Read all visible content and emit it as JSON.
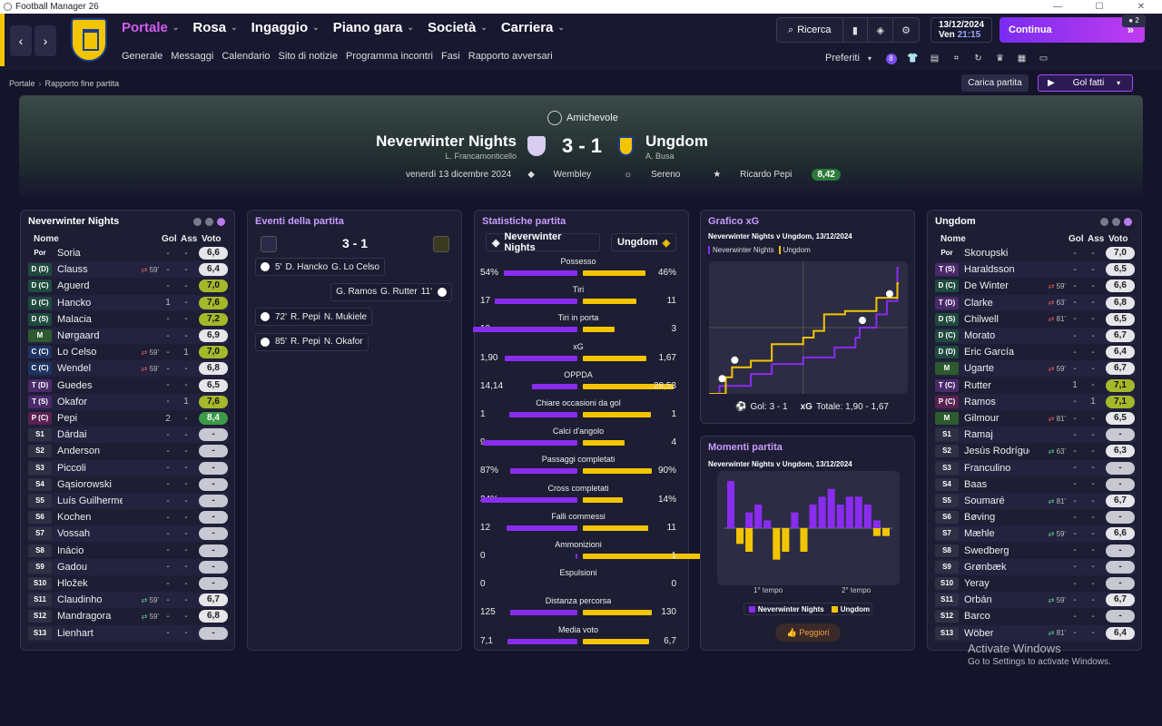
{
  "window": {
    "title": "Football Manager 26"
  },
  "nav": {
    "main": [
      {
        "label": "Portale",
        "active": true
      },
      {
        "label": "Rosa"
      },
      {
        "label": "Ingaggio"
      },
      {
        "label": "Piano gara"
      },
      {
        "label": "Società"
      },
      {
        "label": "Carriera"
      }
    ],
    "sub": [
      "Generale",
      "Messaggi",
      "Calendario",
      "Sito di notizie",
      "Programma incontri",
      "Fasi",
      "Rapporto avversari"
    ]
  },
  "top": {
    "search_label": "Ricerca",
    "date": "13/12/2024",
    "day": "Ven",
    "time": "21:15",
    "continue_label": "Continua",
    "user_count": "2",
    "preferiti_label": "Preferiti",
    "notif_count": "8"
  },
  "breadcrumb": {
    "root": "Portale",
    "current": "Rapporto fine partita"
  },
  "actions": {
    "load_label": "Carica partita",
    "goals_label": "Gol fatti"
  },
  "match": {
    "competition": "Amichevole",
    "home": {
      "name": "Neverwinter Nights",
      "manager": "L. Francamonticello"
    },
    "away": {
      "name": "Ungdom",
      "manager": "A. Busa"
    },
    "score": "3 - 1",
    "date": "venerdì 13 dicembre 2024",
    "stadium": "Wembley",
    "weather": "Sereno",
    "potm": "Ricardo Pepi",
    "potm_rating": "8,42"
  },
  "home_panel": {
    "title": "Neverwinter Nights",
    "cols": {
      "name": "Nome",
      "gol": "Gol",
      "ass": "Ass",
      "voto": "Voto"
    },
    "players": [
      {
        "pos": "Por",
        "name": "Soria",
        "sub": "",
        "gol": "-",
        "ass": "-",
        "voto": "6,6",
        "tone": "n"
      },
      {
        "pos": "D (D)",
        "name": "Clauss",
        "sub": "59'",
        "subdir": "out",
        "gol": "-",
        "ass": "-",
        "voto": "6,4",
        "tone": "n"
      },
      {
        "pos": "D (C)",
        "name": "Aguerd",
        "sub": "",
        "gol": "-",
        "ass": "-",
        "voto": "7,0",
        "tone": "y"
      },
      {
        "pos": "D (C)",
        "name": "Hancko",
        "sub": "",
        "gol": "1",
        "ass": "-",
        "voto": "7,6",
        "tone": "y"
      },
      {
        "pos": "D (S)",
        "name": "Malacia",
        "sub": "",
        "gol": "-",
        "ass": "-",
        "voto": "7,2",
        "tone": "y"
      },
      {
        "pos": "M",
        "name": "Nørgaard",
        "sub": "",
        "gol": "-",
        "ass": "-",
        "voto": "6,9",
        "tone": "n"
      },
      {
        "pos": "C (C)",
        "name": "Lo Celso",
        "sub": "59'",
        "subdir": "out",
        "gol": "-",
        "ass": "1",
        "voto": "7,0",
        "tone": "y"
      },
      {
        "pos": "C (C)",
        "name": "Wendel",
        "sub": "59'",
        "subdir": "out",
        "gol": "-",
        "ass": "-",
        "voto": "6,8",
        "tone": "n"
      },
      {
        "pos": "T (D)",
        "name": "Guedes",
        "sub": "",
        "gol": "-",
        "ass": "-",
        "voto": "6,5",
        "tone": "n"
      },
      {
        "pos": "T (S)",
        "name": "Okafor",
        "sub": "",
        "gol": "-",
        "ass": "1",
        "voto": "7,6",
        "tone": "y"
      },
      {
        "pos": "P (C)",
        "name": "Pepi",
        "sub": "",
        "gol": "2",
        "ass": "-",
        "voto": "8,4",
        "tone": "g"
      },
      {
        "pos": "S1",
        "name": "Dárdai",
        "sub": "",
        "gol": "-",
        "ass": "-",
        "voto": "-",
        "tone": "e"
      },
      {
        "pos": "S2",
        "name": "Anderson",
        "sub": "",
        "gol": "-",
        "ass": "-",
        "voto": "-",
        "tone": "e"
      },
      {
        "pos": "S3",
        "name": "Piccoli",
        "sub": "",
        "gol": "-",
        "ass": "-",
        "voto": "-",
        "tone": "e"
      },
      {
        "pos": "S4",
        "name": "Gąsiorowski",
        "sub": "",
        "gol": "-",
        "ass": "-",
        "voto": "-",
        "tone": "e"
      },
      {
        "pos": "S5",
        "name": "Luís Guilherme",
        "sub": "",
        "gol": "-",
        "ass": "-",
        "voto": "-",
        "tone": "e"
      },
      {
        "pos": "S6",
        "name": "Kochen",
        "sub": "",
        "gol": "-",
        "ass": "-",
        "voto": "-",
        "tone": "e"
      },
      {
        "pos": "S7",
        "name": "Vossah",
        "sub": "",
        "gol": "-",
        "ass": "-",
        "voto": "-",
        "tone": "e"
      },
      {
        "pos": "S8",
        "name": "Inácio",
        "sub": "",
        "gol": "-",
        "ass": "-",
        "voto": "-",
        "tone": "e"
      },
      {
        "pos": "S9",
        "name": "Gadou",
        "sub": "",
        "gol": "-",
        "ass": "-",
        "voto": "-",
        "tone": "e"
      },
      {
        "pos": "S10",
        "name": "Hložek",
        "sub": "",
        "gol": "-",
        "ass": "-",
        "voto": "-",
        "tone": "e"
      },
      {
        "pos": "S11",
        "name": "Claudinho",
        "sub": "59'",
        "subdir": "in",
        "gol": "-",
        "ass": "-",
        "voto": "6,7",
        "tone": "n"
      },
      {
        "pos": "S12",
        "name": "Mandragora",
        "sub": "59'",
        "subdir": "in",
        "gol": "-",
        "ass": "-",
        "voto": "6,8",
        "tone": "n"
      },
      {
        "pos": "S13",
        "name": "Lienhart",
        "sub": "",
        "gol": "-",
        "ass": "-",
        "voto": "-",
        "tone": "e"
      }
    ]
  },
  "events": {
    "title": "Eventi della partita",
    "score": "3 - 1",
    "items": [
      {
        "side": "home",
        "minute": "5'",
        "scorer": "D. Hancko",
        "assist": "G. Lo Celso"
      },
      {
        "side": "away",
        "minute": "11'",
        "scorer": "G. Rutter",
        "assist": "G. Ramos"
      },
      {
        "side": "home",
        "minute": "72'",
        "scorer": "R. Pepi",
        "assist": "N. Mukiele"
      },
      {
        "side": "home",
        "minute": "85'",
        "scorer": "R. Pepi",
        "assist": "N. Okafor"
      }
    ]
  },
  "stats": {
    "title": "Statistiche partita",
    "home": "Neverwinter Nights",
    "away": "Ungdom",
    "items": [
      {
        "label": "Possesso",
        "home": "54%",
        "away": "46%",
        "hv": 54,
        "av": 46
      },
      {
        "label": "Tiri",
        "home": "17",
        "away": "11",
        "hv": 17,
        "av": 11
      },
      {
        "label": "Tiri in porta",
        "home": "10",
        "away": "3",
        "hv": 10,
        "av": 3
      },
      {
        "label": "xG",
        "home": "1,90",
        "away": "1,67",
        "hv": 1.9,
        "av": 1.67
      },
      {
        "label": "OPPDA",
        "home": "14,14",
        "away": "28,53",
        "hv": 14.14,
        "av": 28.53
      },
      {
        "label": "Chiare occasioni da gol",
        "home": "1",
        "away": "1",
        "hv": 1,
        "av": 1
      },
      {
        "label": "Calci d'angolo",
        "home": "9",
        "away": "4",
        "hv": 9,
        "av": 4
      },
      {
        "label": "Passaggi completati",
        "home": "87%",
        "away": "90%",
        "hv": 87,
        "av": 90
      },
      {
        "label": "Cross completati",
        "home": "34%",
        "away": "14%",
        "hv": 34,
        "av": 14
      },
      {
        "label": "Falli commessi",
        "home": "12",
        "away": "11",
        "hv": 12,
        "av": 11
      },
      {
        "label": "Ammonizioni",
        "home": "0",
        "away": "1",
        "hv": 0,
        "av": 1
      },
      {
        "label": "Espulsioni",
        "home": "0",
        "away": "0",
        "hv": 0,
        "av": 0
      },
      {
        "label": "Distanza percorsa",
        "home": "125",
        "away": "130",
        "hv": 125,
        "av": 130
      },
      {
        "label": "Media voto",
        "home": "7,1",
        "away": "6,7",
        "hv": 7.1,
        "av": 6.7
      }
    ]
  },
  "xg": {
    "title": "Grafico xG",
    "subtitle": "Neverwinter Nights v Ungdom, 13/12/2024",
    "legend_home": "Neverwinter Nights",
    "legend_away": "Ungdom",
    "goals_label": "Gol: 3 - 1",
    "xg_label": "xG",
    "xg_total": "Totale: 1,90 - 1,67"
  },
  "moments": {
    "title": "Momenti partita",
    "subtitle": "Neverwinter Nights v Ungdom, 13/12/2024",
    "first_half": "1° tempo",
    "second_half": "2° tempo",
    "legend_home": "Neverwinter Nights",
    "legend_away": "Ungdom",
    "worst_label": "Peggiori"
  },
  "away_panel": {
    "title": "Ungdom",
    "cols": {
      "name": "Nome",
      "gol": "Gol",
      "ass": "Ass",
      "voto": "Voto"
    },
    "players": [
      {
        "pos": "Por",
        "name": "Skorupski",
        "sub": "",
        "gol": "-",
        "ass": "-",
        "voto": "7,0",
        "tone": "n"
      },
      {
        "pos": "T (S)",
        "name": "Haraldsson",
        "sub": "",
        "gol": "-",
        "ass": "-",
        "voto": "6,5",
        "tone": "n"
      },
      {
        "pos": "D (C)",
        "name": "De Winter",
        "sub": "59'",
        "subdir": "out",
        "gol": "-",
        "ass": "-",
        "voto": "6,6",
        "tone": "n"
      },
      {
        "pos": "T (D)",
        "name": "Clarke",
        "sub": "63'",
        "subdir": "out",
        "gol": "-",
        "ass": "-",
        "voto": "6,8",
        "tone": "n"
      },
      {
        "pos": "D (S)",
        "name": "Chilwell",
        "sub": "81'",
        "subdir": "out",
        "gol": "-",
        "ass": "-",
        "voto": "6,5",
        "tone": "n"
      },
      {
        "pos": "D (C)",
        "name": "Morato",
        "sub": "",
        "gol": "-",
        "ass": "-",
        "voto": "6,7",
        "tone": "n"
      },
      {
        "pos": "D (D)",
        "name": "Eric García",
        "sub": "",
        "gol": "-",
        "ass": "-",
        "voto": "6,4",
        "tone": "n"
      },
      {
        "pos": "M",
        "name": "Ugarte",
        "sub": "59'",
        "subdir": "out",
        "gol": "-",
        "ass": "-",
        "voto": "6,7",
        "tone": "n"
      },
      {
        "pos": "T (C)",
        "name": "Rutter",
        "sub": "",
        "gol": "1",
        "ass": "-",
        "voto": "7,1",
        "tone": "y"
      },
      {
        "pos": "P (C)",
        "name": "Ramos",
        "sub": "",
        "gol": "-",
        "ass": "1",
        "voto": "7,1",
        "tone": "y"
      },
      {
        "pos": "M",
        "name": "Gilmour",
        "sub": "81'",
        "subdir": "out",
        "gol": "-",
        "ass": "-",
        "voto": "6,5",
        "tone": "n"
      },
      {
        "pos": "S1",
        "name": "Ramaj",
        "sub": "",
        "gol": "-",
        "ass": "-",
        "voto": "-",
        "tone": "e"
      },
      {
        "pos": "S2",
        "name": "Jesús Rodríguez",
        "sub": "63'",
        "subdir": "in",
        "gol": "-",
        "ass": "-",
        "voto": "6,3",
        "tone": "n"
      },
      {
        "pos": "S3",
        "name": "Franculino",
        "sub": "",
        "gol": "-",
        "ass": "-",
        "voto": "-",
        "tone": "e"
      },
      {
        "pos": "S4",
        "name": "Baas",
        "sub": "",
        "gol": "-",
        "ass": "-",
        "voto": "-",
        "tone": "e"
      },
      {
        "pos": "S5",
        "name": "Soumaré",
        "sub": "81'",
        "subdir": "in",
        "gol": "-",
        "ass": "-",
        "voto": "6,7",
        "tone": "n"
      },
      {
        "pos": "S6",
        "name": "Bøving",
        "sub": "",
        "gol": "-",
        "ass": "-",
        "voto": "-",
        "tone": "e"
      },
      {
        "pos": "S7",
        "name": "Mæhle",
        "sub": "59'",
        "subdir": "in",
        "gol": "-",
        "ass": "-",
        "voto": "6,6",
        "tone": "n"
      },
      {
        "pos": "S8",
        "name": "Swedberg",
        "sub": "",
        "gol": "-",
        "ass": "-",
        "voto": "-",
        "tone": "e"
      },
      {
        "pos": "S9",
        "name": "Grønbæk",
        "sub": "",
        "gol": "-",
        "ass": "-",
        "voto": "-",
        "tone": "e"
      },
      {
        "pos": "S10",
        "name": "Yeray",
        "sub": "",
        "gol": "-",
        "ass": "-",
        "voto": "-",
        "tone": "e"
      },
      {
        "pos": "S11",
        "name": "Orbán",
        "sub": "59'",
        "subdir": "in",
        "gol": "-",
        "ass": "-",
        "voto": "6,7",
        "tone": "n"
      },
      {
        "pos": "S12",
        "name": "Barco",
        "sub": "",
        "gol": "-",
        "ass": "-",
        "voto": "-",
        "tone": "e"
      },
      {
        "pos": "S13",
        "name": "Wöber",
        "sub": "81'",
        "subdir": "in",
        "gol": "-",
        "ass": "-",
        "voto": "6,4",
        "tone": "n"
      }
    ]
  },
  "watermark": {
    "line1": "Activate Windows",
    "line2": "Go to Settings to activate Windows."
  },
  "colors": {
    "home": "#8a2cf0",
    "away": "#f2c500",
    "accent": "#d25cf0"
  },
  "chart_data": [
    {
      "type": "line",
      "title": "Grafico xG",
      "subtitle": "Neverwinter Nights v Ungdom, 13/12/2024",
      "x_unit": "minute",
      "xlim": [
        0,
        95
      ],
      "series": [
        {
          "name": "Neverwinter Nights",
          "points": [
            [
              0,
              0
            ],
            [
              5,
              0.12
            ],
            [
              10,
              0.12
            ],
            [
              20,
              0.3
            ],
            [
              30,
              0.45
            ],
            [
              45,
              0.55
            ],
            [
              60,
              0.7
            ],
            [
              70,
              0.85
            ],
            [
              72,
              1.0
            ],
            [
              80,
              1.2
            ],
            [
              85,
              1.4
            ],
            [
              90,
              1.9
            ]
          ]
        },
        {
          "name": "Ungdom",
          "points": [
            [
              0,
              0
            ],
            [
              8,
              0.25
            ],
            [
              11,
              0.4
            ],
            [
              20,
              0.5
            ],
            [
              30,
              0.75
            ],
            [
              45,
              0.85
            ],
            [
              50,
              0.95
            ],
            [
              55,
              1.2
            ],
            [
              65,
              1.25
            ],
            [
              80,
              1.45
            ],
            [
              90,
              1.67
            ]
          ]
        }
      ],
      "goals": [
        {
          "team": "Neverwinter Nights",
          "minute": 5
        },
        {
          "team": "Ungdom",
          "minute": 11
        },
        {
          "team": "Neverwinter Nights",
          "minute": 72
        },
        {
          "team": "Neverwinter Nights",
          "minute": 85
        }
      ]
    },
    {
      "type": "bar",
      "title": "Momenti partita",
      "subtitle": "Neverwinter Nights v Ungdom, 13/12/2024",
      "categories": [
        "1",
        "2",
        "3",
        "4",
        "5",
        "6",
        "7",
        "8",
        "9",
        "10",
        "11",
        "12",
        "13",
        "14",
        "15",
        "16",
        "17",
        "18"
      ],
      "series": [
        {
          "name": "Neverwinter Nights",
          "values": [
            6,
            0,
            2,
            3,
            1,
            0,
            0,
            2,
            0,
            3,
            4,
            5,
            3,
            4,
            4,
            3,
            1,
            0
          ]
        },
        {
          "name": "Ungdom",
          "values": [
            0,
            2,
            3,
            0,
            0,
            4,
            3,
            0,
            3,
            0,
            0,
            0,
            0,
            0,
            0,
            0,
            1,
            1
          ]
        }
      ],
      "halves": [
        "1° tempo",
        "2° tempo"
      ]
    }
  ]
}
